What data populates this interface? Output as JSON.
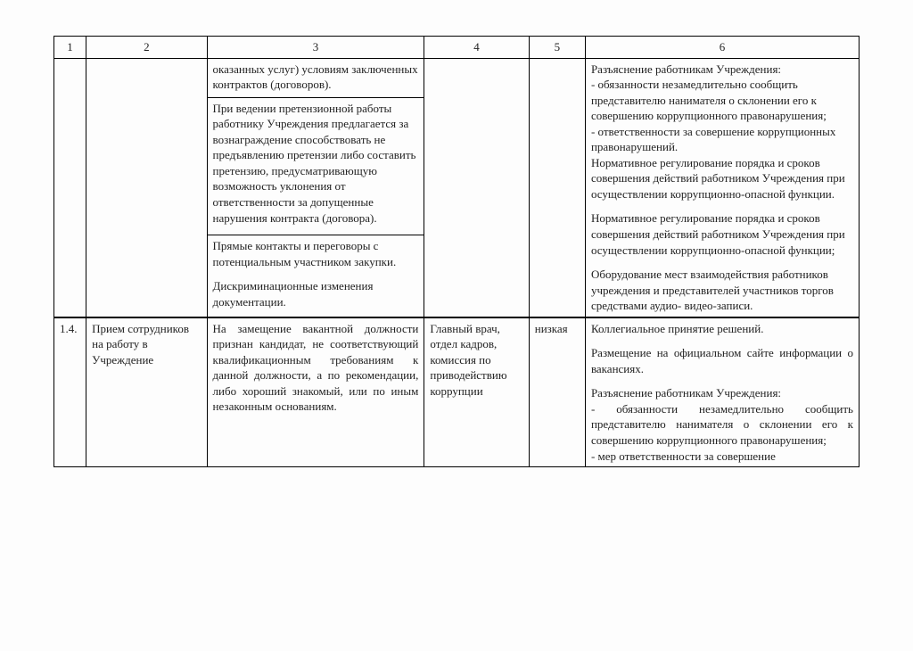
{
  "header": {
    "c1": "1",
    "c2": "2",
    "c3": "3",
    "c4": "4",
    "c5": "5",
    "c6": "6"
  },
  "row1": {
    "col3a": "оказанных услуг) условиям заключенных контрактов (договоров).",
    "col3b": "При ведении претензионной работы работнику Учреждения предлагается за вознаграждение способствовать не предъявлению претензии либо составить претензию, предусматривающую возможность уклонения от ответственности за допущенные нарушения контракта (договора).",
    "col3c": "Прямые контакты и переговоры с потенциальным участником закупки.",
    "col3d": "Дискриминационные изменения документации.",
    "col6p1": "Разъяснение работникам Учреждения:\n- обязанности незамедлительно сообщить представителю нанимателя о склонении его к совершению коррупционного правонарушения;\n- ответственности за совершение коррупционных правонарушений.\nНормативное регулирование порядка и сроков совершения действий работником Учреждения при осуществлении коррупционно-опасной функции.",
    "col6p2": "Нормативное регулирование порядка и сроков совершения действий работником Учреждения при осуществлении коррупционно-опасной функции;",
    "col6p3": "Оборудование мест взаимодействия работников учреждения и представителей участников торгов средствами аудио- видео-записи."
  },
  "row2": {
    "c1": "1.4.",
    "c2": "Прием сотрудников на работу в Учреждение",
    "c3": "На замещение вакантной должности признан кандидат, не соответствующий квалификационным требованиям к данной должности, а по рекомендации, либо хороший знакомый, или по иным незаконным основаниям.",
    "c4": "Главный врач, отдел кадров, комиссия по приводействию коррупции",
    "c5": "низкая",
    "c6p1": "Коллегиальное принятие решений.",
    "c6p2": "Размещение на официальном сайте информации о вакансиях.",
    "c6p3": "Разъяснение работникам Учреждения:\n- обязанности незамедлительно сообщить представителю нанимателя о склонении его к совершению коррупционного правонарушения;\n- мер ответственности за совершение"
  }
}
